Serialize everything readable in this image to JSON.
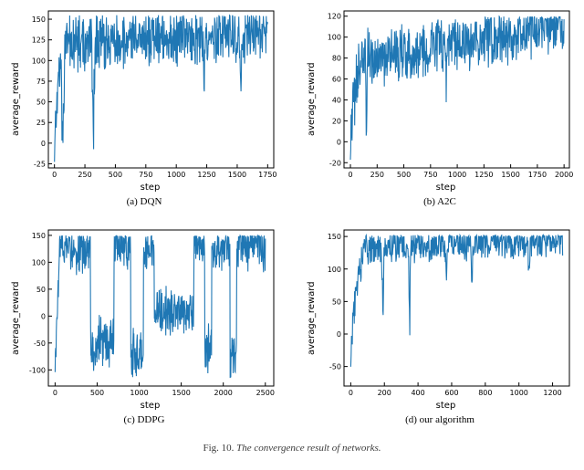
{
  "figure_caption_prefix": "Fig. 10.",
  "figure_caption_rest": "The convergence result of networks.",
  "line_color": "#1f77b4",
  "axis_color": "#000000",
  "background_color": "#ffffff",
  "label_fontsize": 10,
  "tick_fontsize": 8,
  "caption_fontsize": 11,
  "panels": [
    {
      "id": "dqn",
      "caption": "(a) DQN",
      "xlabel": "step",
      "ylabel": "average_reward",
      "xlim": [
        -50,
        1800
      ],
      "ylim": [
        -30,
        160
      ],
      "xticks": [
        0,
        250,
        500,
        750,
        1000,
        1250,
        1500,
        1750
      ],
      "yticks": [
        -25,
        0,
        25,
        50,
        75,
        100,
        125,
        150
      ],
      "seed": 1,
      "n": 600,
      "xmax": 1750,
      "warmup": 25,
      "base_start": 120,
      "base_end": 135,
      "noise": 28,
      "start_low": -25,
      "floor": -25,
      "ceil": 155,
      "dips": [
        {
          "at": 70,
          "width": 18,
          "depth": 140
        },
        {
          "at": 320,
          "width": 14,
          "depth": 150
        },
        {
          "at": 1230,
          "width": 10,
          "depth": 95
        },
        {
          "at": 1530,
          "width": 8,
          "depth": 70
        }
      ]
    },
    {
      "id": "a2c",
      "caption": "(b) A2C",
      "xlabel": "step",
      "ylabel": "average_reward",
      "xlim": [
        -60,
        2050
      ],
      "ylim": [
        -25,
        125
      ],
      "xticks": [
        0,
        250,
        500,
        750,
        1000,
        1250,
        1500,
        1750,
        2000
      ],
      "yticks": [
        -20,
        0,
        20,
        40,
        60,
        80,
        100,
        120
      ],
      "seed": 2,
      "n": 650,
      "xmax": 2000,
      "warmup": 30,
      "base_start": 78,
      "base_end": 112,
      "noise": 22,
      "start_low": -18,
      "floor": -20,
      "ceil": 120,
      "dips": [
        {
          "at": 150,
          "width": 12,
          "depth": 70
        },
        {
          "at": 900,
          "width": 10,
          "depth": 40
        }
      ]
    },
    {
      "id": "ddpg",
      "caption": "(c) DDPG",
      "xlabel": "step",
      "ylabel": "average_reward",
      "xlim": [
        -80,
        2600
      ],
      "ylim": [
        -130,
        160
      ],
      "xticks": [
        0,
        500,
        1000,
        1500,
        2000,
        2500
      ],
      "yticks": [
        -100,
        -50,
        0,
        50,
        100,
        150
      ],
      "seed": 3,
      "n": 700,
      "xmax": 2500,
      "warmup": 15,
      "noise": 35,
      "start_low": -100,
      "floor": -115,
      "ceil": 150,
      "regimes": [
        {
          "from": 0,
          "to": 420,
          "level": 125
        },
        {
          "from": 420,
          "to": 700,
          "level": -50
        },
        {
          "from": 700,
          "to": 900,
          "level": 130
        },
        {
          "from": 900,
          "to": 1050,
          "level": -70
        },
        {
          "from": 1050,
          "to": 1180,
          "level": 130
        },
        {
          "from": 1180,
          "to": 1650,
          "level": 10
        },
        {
          "from": 1650,
          "to": 1780,
          "level": 130
        },
        {
          "from": 1780,
          "to": 1860,
          "level": -60
        },
        {
          "from": 1860,
          "to": 2080,
          "level": 130
        },
        {
          "from": 2080,
          "to": 2160,
          "level": -70
        },
        {
          "from": 2160,
          "to": 2500,
          "level": 130
        }
      ]
    },
    {
      "id": "ours",
      "caption": "(d) our algorithm",
      "xlabel": "step",
      "ylabel": "average_reward",
      "xlim": [
        -40,
        1300
      ],
      "ylim": [
        -80,
        160
      ],
      "xticks": [
        0,
        200,
        400,
        600,
        800,
        1000,
        1200
      ],
      "yticks": [
        -50,
        0,
        50,
        100,
        150
      ],
      "seed": 4,
      "n": 550,
      "xmax": 1260,
      "warmup": 35,
      "base_start": 135,
      "base_end": 145,
      "noise": 22,
      "start_low": -55,
      "floor": -60,
      "ceil": 152,
      "dips": [
        {
          "at": 190,
          "width": 10,
          "depth": 120
        },
        {
          "at": 350,
          "width": 8,
          "depth": 150
        },
        {
          "at": 570,
          "width": 8,
          "depth": 70
        },
        {
          "at": 720,
          "width": 9,
          "depth": 100
        },
        {
          "at": 1060,
          "width": 8,
          "depth": 70
        }
      ]
    }
  ]
}
